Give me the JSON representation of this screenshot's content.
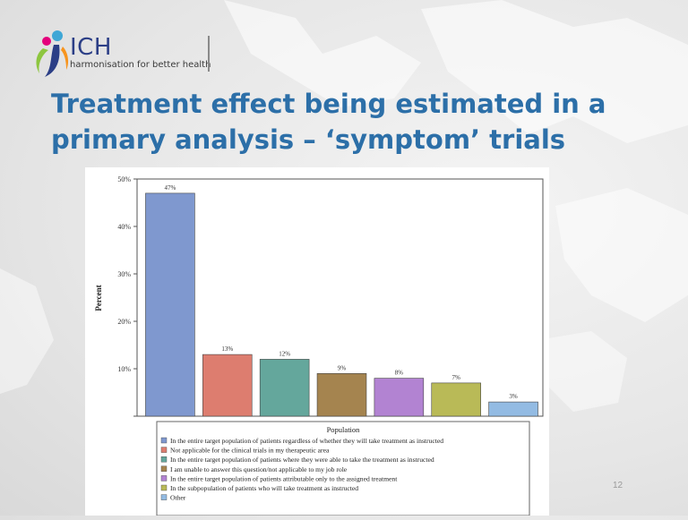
{
  "header": {
    "logo_text": "ICH",
    "logo_tagline": "harmonisation for better health"
  },
  "slide": {
    "title": "Treatment effect being estimated in a primary analysis – ‘symptom’ trials",
    "page_number": "12"
  },
  "colors": {
    "title": "#2c6fa8",
    "logo": "#2b3e86"
  },
  "chart_data": {
    "type": "bar",
    "ylabel": "Percent",
    "ylim": [
      0,
      50
    ],
    "y_ticks": [
      "10%",
      "20%",
      "30%",
      "40%",
      "50%"
    ],
    "y_tick_values": [
      10,
      20,
      30,
      40,
      50
    ],
    "categories": [
      "In the entire target population of patients regardless of whether they will take treatment as instructed",
      "Not applicable for the clinical trials in my therapeutic area",
      "In the entire target population of patients where they were able to take the treatment as instructed",
      "I am unable to answer this question/not applicable to my job role",
      "In the entire target population of patients attributable only to the assigned treatment",
      "In the subpopulation of patients who will take treatment as instructed",
      "Other"
    ],
    "values": [
      47,
      13,
      12,
      9,
      8,
      7,
      3
    ],
    "data_labels": [
      "47%",
      "13%",
      "12%",
      "9%",
      "8%",
      "7%",
      "3%"
    ],
    "bar_colors": [
      "#7f98cf",
      "#dd7d6f",
      "#64a79c",
      "#a5844f",
      "#b283d2",
      "#b9ba57",
      "#93bbe3"
    ],
    "legend": {
      "title": "Population",
      "placement": "bottom"
    },
    "grid": false
  }
}
